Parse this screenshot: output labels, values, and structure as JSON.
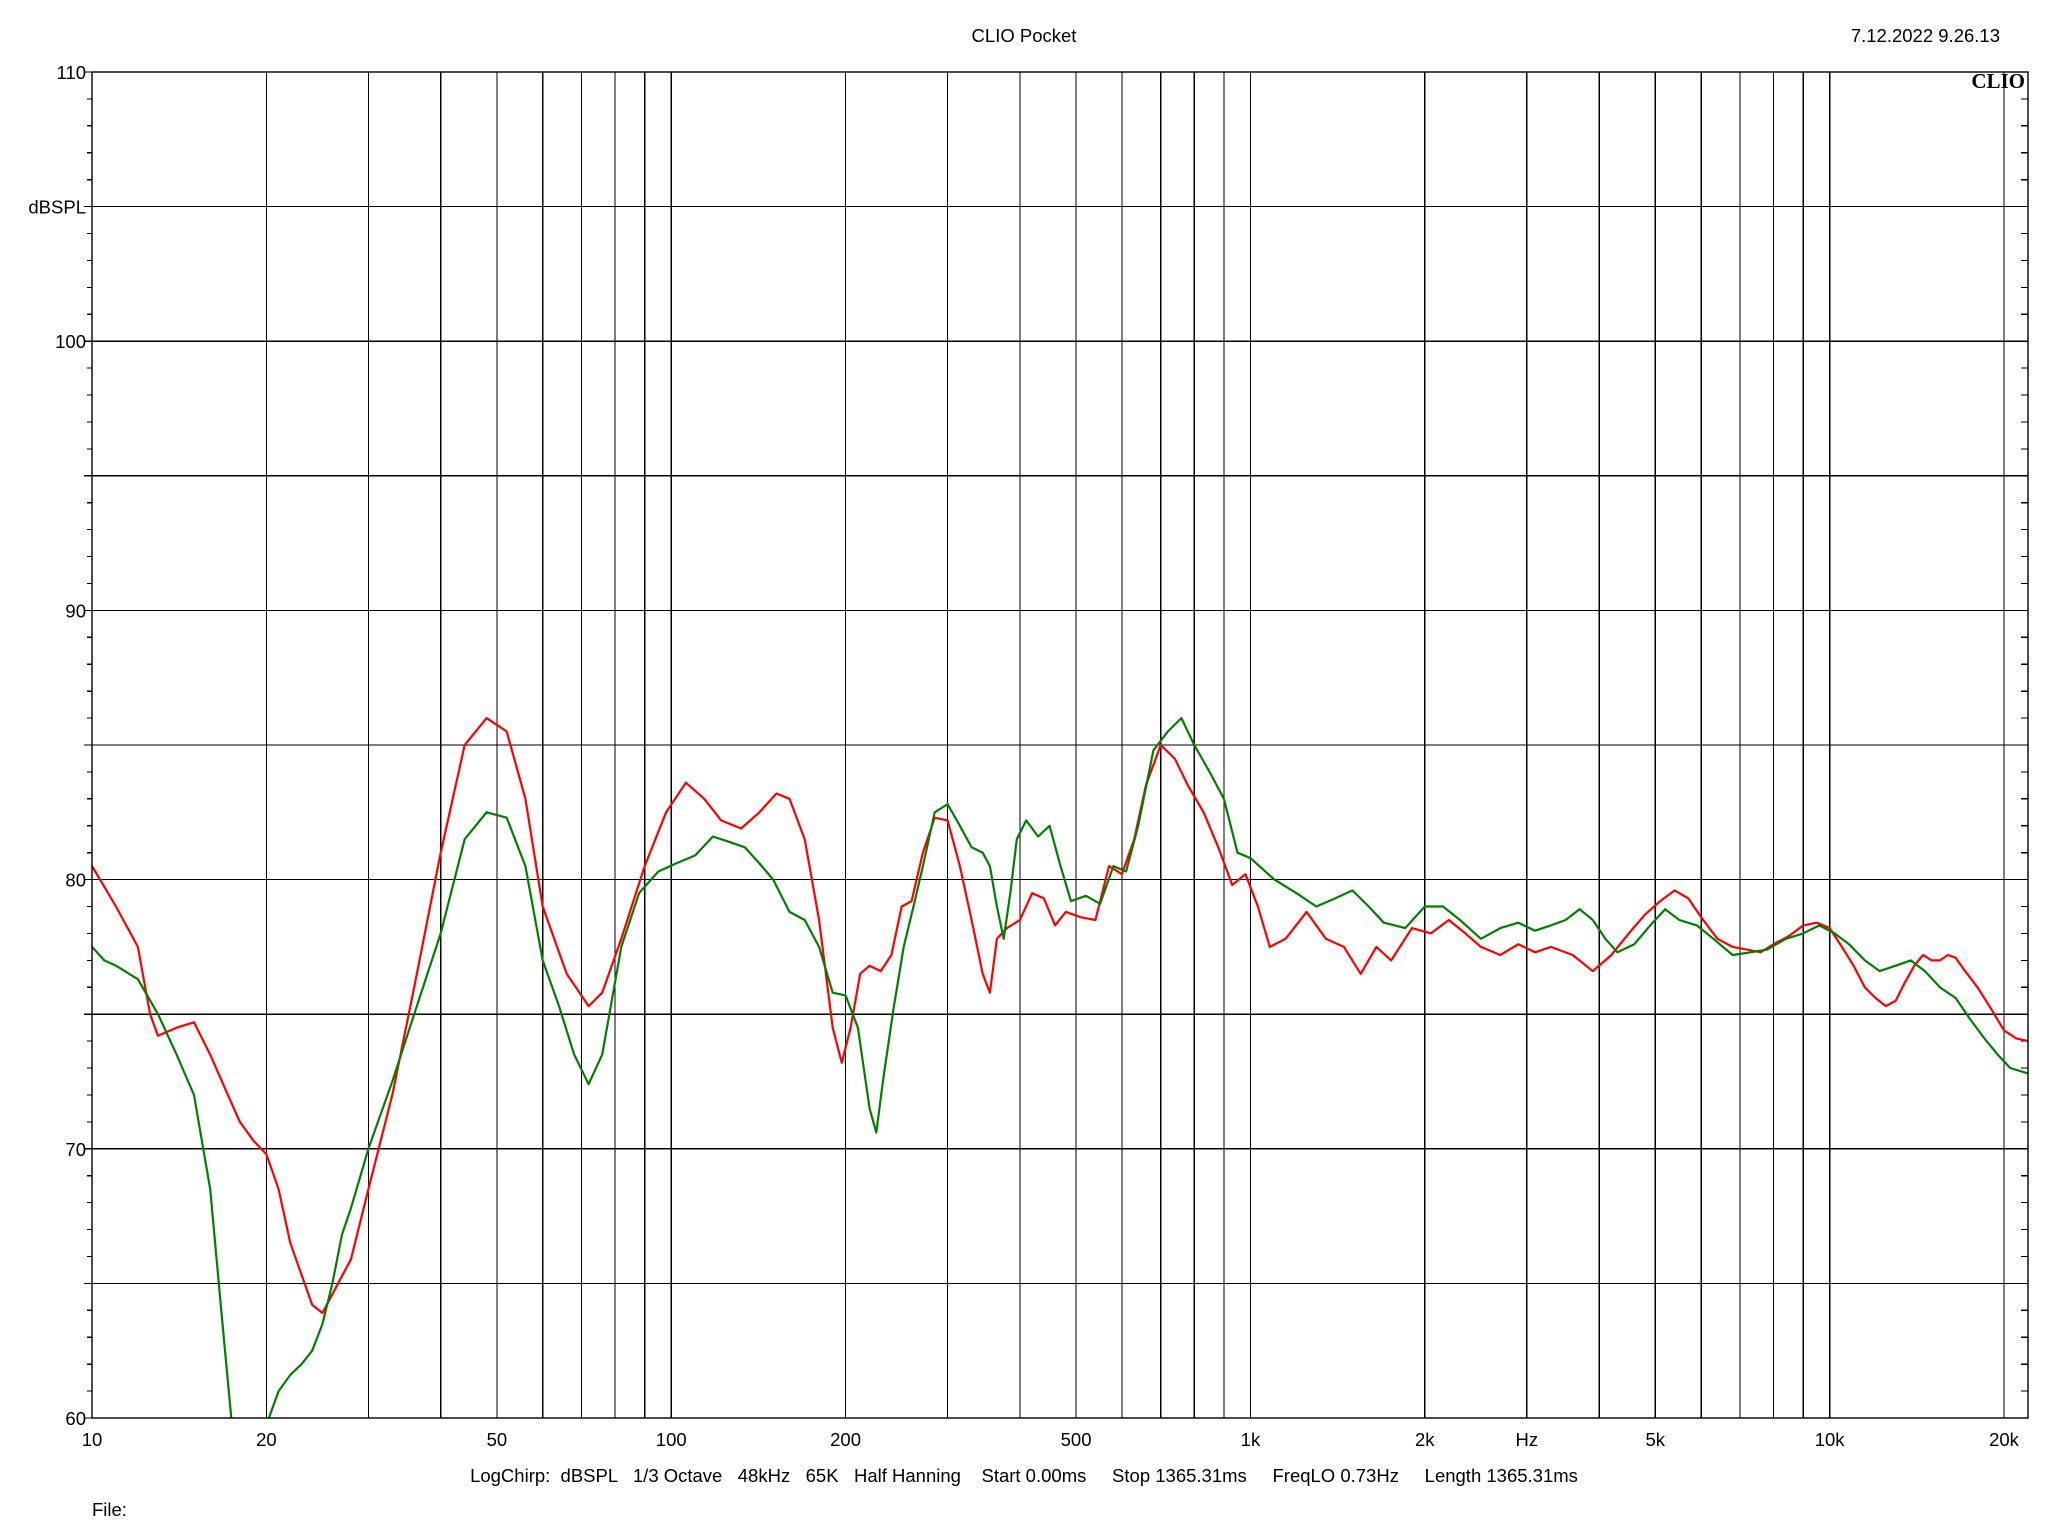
{
  "header": {
    "title": "CLIO Pocket",
    "timestamp": "7.12.2022 9.26.13",
    "logo": "CLIO"
  },
  "footer": {
    "settings": "LogChirp:  dBSPL   1/3 Octave   48kHz   65K   Half Hanning    Start 0.00ms     Stop 1365.31ms     FreqLO 0.73Hz     Length 1365.31ms",
    "file_label": "File:"
  },
  "chart_data": {
    "type": "line",
    "xscale": "log",
    "xlim": [
      10,
      22000
    ],
    "ylim": [
      60,
      110
    ],
    "ylabel": "dBSPL",
    "xlabel": "Hz",
    "grid": true,
    "y_ticks": [
      {
        "value": 110,
        "label": "110"
      },
      {
        "value": 105,
        "label": "dBSPL"
      },
      {
        "value": 100,
        "label": "100"
      },
      {
        "value": 95,
        "label": ""
      },
      {
        "value": 90,
        "label": "90"
      },
      {
        "value": 85,
        "label": ""
      },
      {
        "value": 80,
        "label": "80"
      },
      {
        "value": 75,
        "label": ""
      },
      {
        "value": 70,
        "label": "70"
      },
      {
        "value": 65,
        "label": ""
      },
      {
        "value": 60,
        "label": "60"
      }
    ],
    "x_ticks": [
      {
        "value": 10,
        "label": "10"
      },
      {
        "value": 20,
        "label": "20"
      },
      {
        "value": 50,
        "label": "50"
      },
      {
        "value": 100,
        "label": "100"
      },
      {
        "value": 200,
        "label": "200"
      },
      {
        "value": 500,
        "label": "500"
      },
      {
        "value": 1000,
        "label": "1k"
      },
      {
        "value": 2000,
        "label": "2k"
      },
      {
        "value": 3000,
        "label": "Hz"
      },
      {
        "value": 5000,
        "label": "5k"
      },
      {
        "value": 10000,
        "label": "10k"
      },
      {
        "value": 20000,
        "label": "20k"
      }
    ],
    "x_gridlines": [
      10,
      20,
      30,
      40,
      50,
      60,
      70,
      80,
      90,
      100,
      200,
      300,
      400,
      500,
      600,
      700,
      800,
      900,
      1000,
      2000,
      3000,
      4000,
      5000,
      6000,
      7000,
      8000,
      9000,
      10000,
      20000
    ],
    "series": [
      {
        "color": "#ff0000",
        "points": [
          [
            10,
            80.5
          ],
          [
            11,
            79.0
          ],
          [
            12,
            77.5
          ],
          [
            12.6,
            75.0
          ],
          [
            13,
            74.2
          ],
          [
            14,
            74.5
          ],
          [
            15,
            74.7
          ],
          [
            16,
            73.5
          ],
          [
            17,
            72.2
          ],
          [
            18,
            71.0
          ],
          [
            19,
            70.3
          ],
          [
            20,
            69.8
          ],
          [
            21,
            68.5
          ],
          [
            22,
            66.5
          ],
          [
            24,
            64.2
          ],
          [
            25,
            63.9
          ],
          [
            26,
            64.6
          ],
          [
            28,
            65.9
          ],
          [
            30,
            68.5
          ],
          [
            33,
            72.0
          ],
          [
            36,
            76.0
          ],
          [
            40,
            81.0
          ],
          [
            44,
            85.0
          ],
          [
            48,
            86.0
          ],
          [
            52,
            85.5
          ],
          [
            56,
            83.0
          ],
          [
            60,
            79.0
          ],
          [
            66,
            76.5
          ],
          [
            72,
            75.3
          ],
          [
            76,
            75.8
          ],
          [
            82,
            77.8
          ],
          [
            90,
            80.5
          ],
          [
            98,
            82.5
          ],
          [
            106,
            83.6
          ],
          [
            114,
            83.0
          ],
          [
            122,
            82.2
          ],
          [
            132,
            81.9
          ],
          [
            142,
            82.5
          ],
          [
            152,
            83.2
          ],
          [
            160,
            83.0
          ],
          [
            170,
            81.5
          ],
          [
            180,
            78.5
          ],
          [
            190,
            74.5
          ],
          [
            197,
            73.2
          ],
          [
            204,
            74.5
          ],
          [
            212,
            76.5
          ],
          [
            220,
            76.8
          ],
          [
            230,
            76.6
          ],
          [
            240,
            77.2
          ],
          [
            250,
            79.0
          ],
          [
            260,
            79.2
          ],
          [
            272,
            81.0
          ],
          [
            285,
            82.3
          ],
          [
            300,
            82.2
          ],
          [
            315,
            80.5
          ],
          [
            330,
            78.5
          ],
          [
            345,
            76.5
          ],
          [
            355,
            75.8
          ],
          [
            365,
            77.8
          ],
          [
            380,
            78.2
          ],
          [
            400,
            78.5
          ],
          [
            420,
            79.5
          ],
          [
            440,
            79.3
          ],
          [
            460,
            78.3
          ],
          [
            480,
            78.8
          ],
          [
            510,
            78.6
          ],
          [
            540,
            78.5
          ],
          [
            570,
            80.5
          ],
          [
            600,
            80.2
          ],
          [
            630,
            81.5
          ],
          [
            660,
            83.5
          ],
          [
            700,
            85.0
          ],
          [
            740,
            84.5
          ],
          [
            780,
            83.5
          ],
          [
            830,
            82.5
          ],
          [
            880,
            81.2
          ],
          [
            930,
            79.8
          ],
          [
            980,
            80.2
          ],
          [
            1030,
            79.0
          ],
          [
            1080,
            77.5
          ],
          [
            1150,
            77.8
          ],
          [
            1250,
            78.8
          ],
          [
            1350,
            77.8
          ],
          [
            1450,
            77.5
          ],
          [
            1550,
            76.5
          ],
          [
            1650,
            77.5
          ],
          [
            1750,
            77.0
          ],
          [
            1900,
            78.2
          ],
          [
            2050,
            78.0
          ],
          [
            2200,
            78.5
          ],
          [
            2350,
            78.0
          ],
          [
            2500,
            77.5
          ],
          [
            2700,
            77.2
          ],
          [
            2900,
            77.6
          ],
          [
            3100,
            77.3
          ],
          [
            3300,
            77.5
          ],
          [
            3600,
            77.2
          ],
          [
            3900,
            76.6
          ],
          [
            4200,
            77.2
          ],
          [
            4500,
            78.0
          ],
          [
            4800,
            78.7
          ],
          [
            5100,
            79.2
          ],
          [
            5400,
            79.6
          ],
          [
            5700,
            79.3
          ],
          [
            6000,
            78.6
          ],
          [
            6400,
            77.8
          ],
          [
            6800,
            77.5
          ],
          [
            7200,
            77.4
          ],
          [
            7600,
            77.3
          ],
          [
            8000,
            77.6
          ],
          [
            8500,
            77.9
          ],
          [
            9000,
            78.3
          ],
          [
            9500,
            78.4
          ],
          [
            10000,
            78.2
          ],
          [
            10500,
            77.5
          ],
          [
            11000,
            76.8
          ],
          [
            11500,
            76.0
          ],
          [
            12000,
            75.6
          ],
          [
            12500,
            75.3
          ],
          [
            13000,
            75.5
          ],
          [
            13500,
            76.2
          ],
          [
            14000,
            76.8
          ],
          [
            14500,
            77.2
          ],
          [
            15000,
            77.0
          ],
          [
            15500,
            77.0
          ],
          [
            16000,
            77.2
          ],
          [
            16500,
            77.1
          ],
          [
            17000,
            76.7
          ],
          [
            18000,
            76.0
          ],
          [
            19000,
            75.2
          ],
          [
            20000,
            74.4
          ],
          [
            21000,
            74.1
          ],
          [
            22000,
            74.0
          ]
        ]
      },
      {
        "color": "#008000",
        "points": [
          [
            10,
            77.5
          ],
          [
            10.5,
            77.0
          ],
          [
            11,
            76.8
          ],
          [
            12,
            76.3
          ],
          [
            13,
            75.0
          ],
          [
            14,
            73.5
          ],
          [
            15,
            72.0
          ],
          [
            16,
            68.5
          ],
          [
            16.8,
            63.5
          ],
          [
            17.4,
            60.0
          ]
        ]
      },
      {
        "color": "#008000",
        "points": [
          [
            20.2,
            60.0
          ],
          [
            21,
            61.0
          ],
          [
            22,
            61.6
          ],
          [
            23,
            62.0
          ],
          [
            24,
            62.5
          ],
          [
            25,
            63.5
          ],
          [
            26,
            65.0
          ],
          [
            27,
            66.8
          ],
          [
            28,
            67.8
          ],
          [
            30,
            70.0
          ],
          [
            33,
            72.5
          ],
          [
            36,
            75.0
          ],
          [
            40,
            78.0
          ],
          [
            44,
            81.5
          ],
          [
            48,
            82.5
          ],
          [
            52,
            82.3
          ],
          [
            56,
            80.5
          ],
          [
            60,
            77.0
          ],
          [
            64,
            75.3
          ],
          [
            68,
            73.5
          ],
          [
            72,
            72.4
          ],
          [
            76,
            73.5
          ],
          [
            82,
            77.5
          ],
          [
            88,
            79.5
          ],
          [
            95,
            80.3
          ],
          [
            102,
            80.6
          ],
          [
            110,
            80.9
          ],
          [
            118,
            81.6
          ],
          [
            126,
            81.4
          ],
          [
            134,
            81.2
          ],
          [
            142,
            80.6
          ],
          [
            150,
            80.0
          ],
          [
            160,
            78.8
          ],
          [
            170,
            78.5
          ],
          [
            180,
            77.5
          ],
          [
            190,
            75.8
          ],
          [
            200,
            75.7
          ],
          [
            210,
            74.5
          ],
          [
            220,
            71.5
          ],
          [
            226,
            70.6
          ],
          [
            232,
            72.5
          ],
          [
            242,
            75.2
          ],
          [
            252,
            77.5
          ],
          [
            262,
            79.0
          ],
          [
            272,
            80.5
          ],
          [
            285,
            82.5
          ],
          [
            300,
            82.8
          ],
          [
            315,
            82.0
          ],
          [
            330,
            81.2
          ],
          [
            345,
            81.0
          ],
          [
            355,
            80.5
          ],
          [
            365,
            79.0
          ],
          [
            375,
            77.8
          ],
          [
            385,
            79.5
          ],
          [
            395,
            81.5
          ],
          [
            410,
            82.2
          ],
          [
            430,
            81.6
          ],
          [
            450,
            82.0
          ],
          [
            470,
            80.5
          ],
          [
            490,
            79.2
          ],
          [
            520,
            79.4
          ],
          [
            550,
            79.1
          ],
          [
            580,
            80.5
          ],
          [
            610,
            80.3
          ],
          [
            640,
            82.0
          ],
          [
            680,
            84.8
          ],
          [
            720,
            85.5
          ],
          [
            760,
            86.0
          ],
          [
            800,
            85.0
          ],
          [
            850,
            84.0
          ],
          [
            900,
            83.0
          ],
          [
            950,
            81.0
          ],
          [
            1000,
            80.8
          ],
          [
            1100,
            80.0
          ],
          [
            1200,
            79.5
          ],
          [
            1300,
            79.0
          ],
          [
            1400,
            79.3
          ],
          [
            1500,
            79.6
          ],
          [
            1600,
            79.0
          ],
          [
            1700,
            78.4
          ],
          [
            1850,
            78.2
          ],
          [
            2000,
            79.0
          ],
          [
            2150,
            79.0
          ],
          [
            2300,
            78.5
          ],
          [
            2500,
            77.8
          ],
          [
            2700,
            78.2
          ],
          [
            2900,
            78.4
          ],
          [
            3100,
            78.1
          ],
          [
            3300,
            78.3
          ],
          [
            3500,
            78.5
          ],
          [
            3700,
            78.9
          ],
          [
            3900,
            78.5
          ],
          [
            4100,
            77.8
          ],
          [
            4300,
            77.3
          ],
          [
            4600,
            77.6
          ],
          [
            4900,
            78.3
          ],
          [
            5200,
            78.9
          ],
          [
            5500,
            78.5
          ],
          [
            5900,
            78.3
          ],
          [
            6300,
            77.8
          ],
          [
            6800,
            77.2
          ],
          [
            7300,
            77.3
          ],
          [
            7800,
            77.4
          ],
          [
            8400,
            77.8
          ],
          [
            9000,
            78.0
          ],
          [
            9600,
            78.3
          ],
          [
            10200,
            78.0
          ],
          [
            10800,
            77.6
          ],
          [
            11500,
            77.0
          ],
          [
            12200,
            76.6
          ],
          [
            13000,
            76.8
          ],
          [
            13800,
            77.0
          ],
          [
            14600,
            76.6
          ],
          [
            15500,
            76.0
          ],
          [
            16500,
            75.6
          ],
          [
            17500,
            74.8
          ],
          [
            18500,
            74.1
          ],
          [
            19500,
            73.5
          ],
          [
            20500,
            73.0
          ],
          [
            22000,
            72.8
          ]
        ]
      }
    ]
  }
}
